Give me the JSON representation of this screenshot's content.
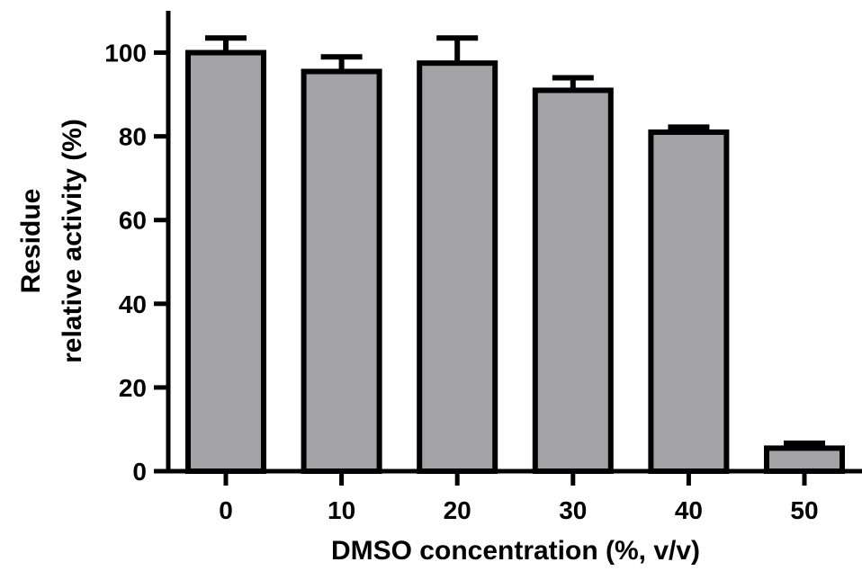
{
  "chart_data": {
    "type": "bar",
    "categories": [
      "0",
      "10",
      "20",
      "30",
      "40",
      "50"
    ],
    "values": [
      100,
      95.5,
      97.5,
      91,
      81,
      5.5
    ],
    "errors": [
      3.5,
      3.5,
      6,
      3,
      1.2,
      1.2
    ],
    "xlabel": "DMSO concentration (%, v/v)",
    "ylabel_lines": [
      "Residue",
      "relative activity (%)"
    ],
    "ylim": [
      0,
      110
    ],
    "yticks": [
      0,
      20,
      40,
      60,
      80,
      100
    ],
    "grid": false,
    "legend": "none",
    "colors": {
      "bar_fill": "#a3a2a7",
      "stroke": "#000000"
    }
  }
}
